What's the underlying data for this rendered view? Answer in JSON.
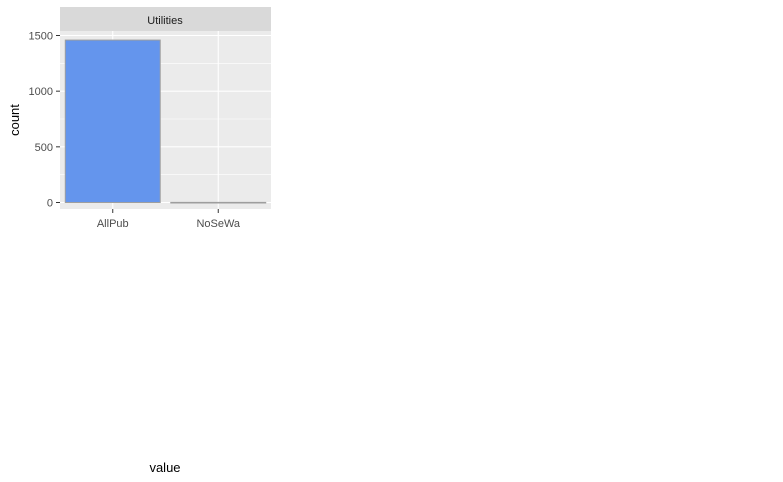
{
  "chart_data": {
    "type": "bar",
    "facet_title": "Utilities",
    "categories": [
      "AllPub",
      "NoSeWa"
    ],
    "values": [
      1459,
      1
    ],
    "xlabel": "value",
    "ylabel": "count",
    "ylim": [
      0,
      1600
    ],
    "yticks": [
      "0",
      "500",
      "1000",
      "1500"
    ],
    "grid": true,
    "bar_color": "#6495ED",
    "bar_outline": "#9e9e9e",
    "panel_background": "#EBEBEB",
    "strip_background": "#D9D9D9"
  }
}
